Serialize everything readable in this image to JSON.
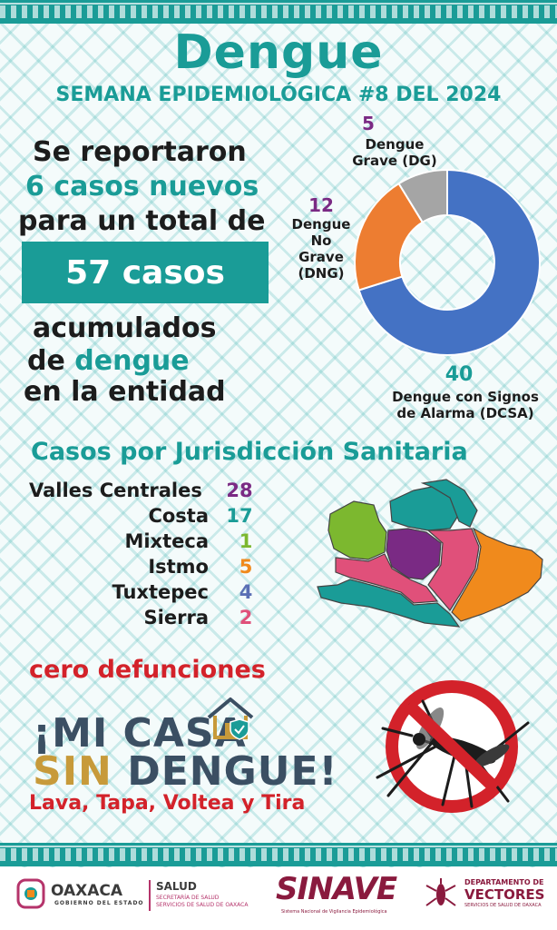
{
  "header": {
    "title": "Dengue",
    "week": "SEMANA EPIDEMIOLÓGICA #8 DEL 2024"
  },
  "summary": {
    "line1": "Se reportaron",
    "line2": "6 casos nuevos",
    "line3": "para un total de",
    "total": "57 casos",
    "line4": "acumulados",
    "line5_prefix": "de ",
    "line5_highlight": "dengue",
    "line6": "en la entidad"
  },
  "chart_data": {
    "type": "pie",
    "title": "",
    "donut": true,
    "slices": [
      {
        "value": 40,
        "value_label": "40",
        "label_lines": [
          "Dengue con Signos",
          "de Alarma (DCSA)"
        ],
        "color": "#4472c4"
      },
      {
        "value": 12,
        "value_label": "12",
        "label_lines": [
          "Dengue",
          "No",
          "Grave",
          "(DNG)"
        ],
        "color": "#ed7d31"
      },
      {
        "value": 5,
        "value_label": "5",
        "label_lines": [
          "Dengue",
          "Grave (DG)"
        ],
        "color": "#a5a5a5"
      }
    ],
    "value_label_colors": [
      "#1a9c97",
      "#7a2a84",
      "#7a2a84"
    ]
  },
  "jurisdictions": {
    "title": "Casos por Jurisdicción Sanitaria",
    "items": [
      {
        "name": "Valles Centrales",
        "value": "28",
        "color": "#7a2a84"
      },
      {
        "name": "Costa",
        "value": "17",
        "color": "#1a9c97"
      },
      {
        "name": "Mixteca",
        "value": "1",
        "color": "#7cb82f"
      },
      {
        "name": "Istmo",
        "value": "5",
        "color": "#f08a1c"
      },
      {
        "name": "Tuxtepec",
        "value": "4",
        "color": "#5b6fb5"
      },
      {
        "name": "Sierra",
        "value": "2",
        "color": "#e0507a"
      }
    ]
  },
  "messages": {
    "deaths": "cero defunciones",
    "slogan_line1": "¡MI CASA",
    "slogan_line2_a": "SIN ",
    "slogan_line2_b": "DENGUE!",
    "tagline": "Lava, Tapa, Voltea y Tira"
  },
  "footer": {
    "oaxaca": "OAXACA",
    "oaxaca_sub": "GOBIERNO DEL ESTADO",
    "salud": "SALUD",
    "salud_sub1": "SECRETARÍA DE SALUD",
    "salud_sub2": "SERVICIOS DE SALUD DE OAXACA",
    "sinave": "SINAVE",
    "sinave_sub": "Sistema Nacional de Vigilancia Epidemiológica",
    "vectores1": "DEPARTAMENTO DE",
    "vectores2": "VECTORES",
    "vectores3": "SERVICIOS DE SALUD DE OAXACA"
  },
  "colors": {
    "teal": "#1a9c97",
    "red": "#d3222a",
    "navy": "#3b4f63",
    "gold": "#c79a3a"
  }
}
